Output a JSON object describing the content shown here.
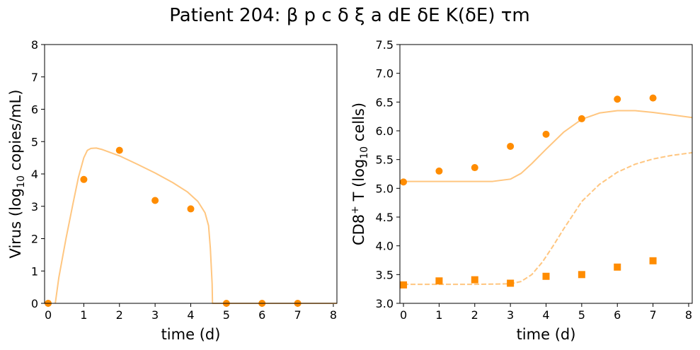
{
  "chart_data": {
    "title": "Patient 204: β p c δ ξ a dE δE K(δE) τm",
    "panels": [
      {
        "type": "line+scatter",
        "xlabel": "time (d)",
        "ylabel_parts": [
          "Virus (log",
          "10",
          " copies/mL)"
        ],
        "xlim": [
          -0.1,
          8.1
        ],
        "ylim": [
          0,
          8
        ],
        "xticks": [
          "0",
          "1",
          "2",
          "3",
          "4",
          "5",
          "6",
          "7",
          "8"
        ],
        "yticks": [
          "0",
          "1",
          "2",
          "3",
          "4",
          "5",
          "6",
          "7",
          "8"
        ],
        "series": [
          {
            "kind": "line",
            "style": "solid",
            "color": "#ffc680",
            "x": [
              0.2,
              0.3,
              0.5,
              0.7,
              0.85,
              1.0,
              1.1,
              1.2,
              1.35,
              1.5,
              2.0,
              2.5,
              3.0,
              3.5,
              3.9,
              4.2,
              4.4,
              4.5,
              4.55,
              4.6,
              4.61,
              4.65,
              8.1
            ],
            "y": [
              0.0,
              0.8,
              2.0,
              3.1,
              3.9,
              4.5,
              4.73,
              4.79,
              4.8,
              4.76,
              4.56,
              4.3,
              4.03,
              3.73,
              3.45,
              3.15,
              2.8,
              2.4,
              1.7,
              0.6,
              0.0,
              0.0,
              0.0
            ]
          },
          {
            "kind": "points",
            "marker": "circle",
            "color": "#ff8c00",
            "x": [
              0,
              1,
              2,
              3,
              4,
              5,
              6,
              7
            ],
            "y": [
              0,
              3.83,
              4.73,
              3.18,
              2.92,
              0,
              0,
              0
            ]
          }
        ]
      },
      {
        "type": "line+scatter",
        "xlabel": "time (d)",
        "ylabel_parts": [
          "CD8",
          "+",
          " T (log",
          "10",
          " cells)"
        ],
        "xlim": [
          -0.1,
          8.1
        ],
        "ylim": [
          3.0,
          7.5
        ],
        "xticks": [
          "0",
          "1",
          "2",
          "3",
          "4",
          "5",
          "6",
          "7",
          "8"
        ],
        "yticks": [
          "3.0",
          "3.5",
          "4.0",
          "4.5",
          "5.0",
          "5.5",
          "6.0",
          "6.5",
          "7.0",
          "7.5"
        ],
        "series": [
          {
            "kind": "line",
            "style": "solid",
            "color": "#ffc680",
            "x": [
              0,
              1,
              2,
              2.5,
              3.0,
              3.3,
              3.6,
              4.0,
              4.5,
              5.0,
              5.5,
              6.0,
              6.5,
              7.0,
              7.5,
              8.1
            ],
            "y": [
              5.12,
              5.12,
              5.12,
              5.12,
              5.16,
              5.26,
              5.43,
              5.68,
              5.98,
              6.2,
              6.31,
              6.35,
              6.35,
              6.32,
              6.28,
              6.23
            ]
          },
          {
            "kind": "line",
            "style": "dashed",
            "color": "#ffc680",
            "x": [
              0,
              1,
              2,
              3.0,
              3.3,
              3.6,
              3.9,
              4.2,
              4.5,
              4.8,
              5.0,
              5.5,
              6.0,
              6.5,
              7.0,
              7.5,
              8.1
            ],
            "y": [
              3.33,
              3.33,
              3.33,
              3.34,
              3.38,
              3.5,
              3.72,
              4.0,
              4.3,
              4.58,
              4.77,
              5.07,
              5.28,
              5.42,
              5.51,
              5.57,
              5.62
            ]
          },
          {
            "kind": "points",
            "marker": "circle",
            "color": "#ff8c00",
            "x": [
              0,
              1,
              2,
              3,
              4,
              5,
              6,
              7
            ],
            "y": [
              5.11,
              5.3,
              5.36,
              5.73,
              5.94,
              6.21,
              6.55,
              6.57
            ]
          },
          {
            "kind": "points",
            "marker": "square",
            "color": "#ff8c00",
            "x": [
              0,
              1,
              2,
              3,
              4,
              5,
              6,
              7
            ],
            "y": [
              3.32,
              3.39,
              3.41,
              3.35,
              3.47,
              3.5,
              3.63,
              3.74
            ]
          }
        ]
      }
    ]
  }
}
